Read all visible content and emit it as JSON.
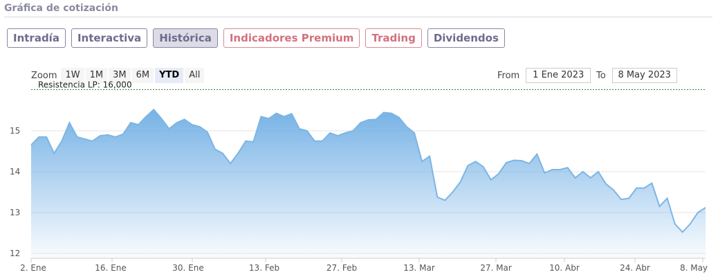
{
  "section_title": "Gráfica de cotización",
  "tabs": [
    {
      "label": "Intradía",
      "active": false,
      "premium": false
    },
    {
      "label": "Interactiva",
      "active": false,
      "premium": false
    },
    {
      "label": "Histórica",
      "active": true,
      "premium": false
    },
    {
      "label": "Indicadores Premium",
      "active": false,
      "premium": true
    },
    {
      "label": "Trading",
      "active": false,
      "premium": true
    },
    {
      "label": "Dividendos",
      "active": false,
      "premium": false
    }
  ],
  "zoom": {
    "label": "Zoom",
    "buttons": [
      "1W",
      "1M",
      "3M",
      "6M",
      "YTD",
      "All"
    ],
    "selected": "YTD"
  },
  "range": {
    "from_label": "From",
    "from_value": "1 Ene 2023",
    "to_label": "To",
    "to_value": "8 May 2023"
  },
  "colors": {
    "tab_border": "#8a83a6",
    "premium": "#d4707f",
    "line": "#7cb5e4",
    "area_top": "#6faee4",
    "resistance": "#3c7a3c"
  },
  "chart_data": {
    "type": "area",
    "y_ticks": [
      12,
      13,
      14,
      15
    ],
    "ylim": [
      12,
      16
    ],
    "x_tick_labels": [
      "2. Ene",
      "16. Ene",
      "30. Ene",
      "13. Feb",
      "27. Feb",
      "13. Mar",
      "27. Mar",
      "10. Abr",
      "24. Abr",
      "8. May"
    ],
    "resistance": {
      "label": "Resistencia LP: 16,000",
      "value": 16.0
    },
    "series": [
      {
        "values": [
          14.65,
          14.85,
          14.85,
          14.45,
          14.75,
          15.2,
          14.85,
          14.8,
          14.75,
          14.88,
          14.9,
          14.85,
          14.92,
          15.2,
          15.15,
          15.35,
          15.52,
          15.3,
          15.05,
          15.2,
          15.28,
          15.15,
          15.1,
          14.97,
          14.55,
          14.45,
          14.2,
          14.45,
          14.75,
          14.73,
          15.35,
          15.3,
          15.43,
          15.35,
          15.42,
          15.05,
          15.0,
          14.75,
          14.75,
          14.95,
          14.88,
          14.95,
          15.0,
          15.2,
          15.27,
          15.28,
          15.45,
          15.43,
          15.33,
          15.1,
          14.95,
          14.25,
          14.38,
          13.38,
          13.3,
          13.5,
          13.75,
          14.15,
          14.25,
          14.12,
          13.8,
          13.95,
          14.22,
          14.28,
          14.27,
          14.2,
          14.43,
          13.97,
          14.05,
          14.05,
          14.1,
          13.85,
          14.0,
          13.85,
          14.0,
          13.7,
          13.55,
          13.32,
          13.35,
          13.6,
          13.6,
          13.72,
          13.15,
          13.35,
          12.72,
          12.52,
          12.72,
          13.0,
          13.12
        ]
      }
    ]
  }
}
